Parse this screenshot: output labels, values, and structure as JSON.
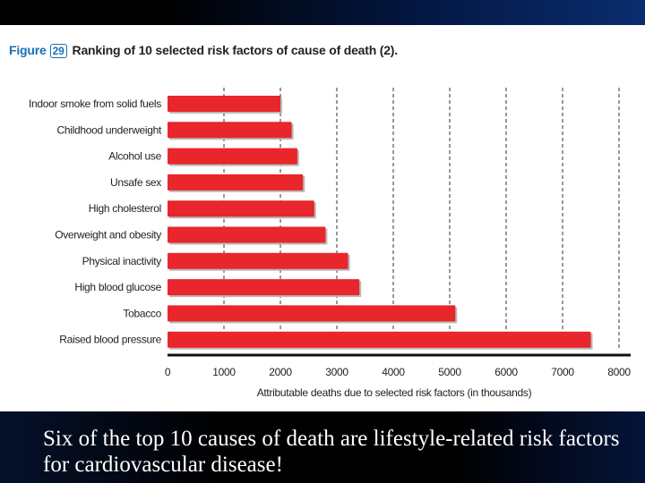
{
  "figure": {
    "word": "Figure",
    "number": "29",
    "title": "Ranking of 10 selected risk factors of cause of death (2)."
  },
  "caption": "Six of the top 10 causes of death are lifestyle-related risk factors for cardiovascular disease!",
  "chart_data": {
    "type": "bar",
    "orientation": "horizontal",
    "title": "Ranking of 10 selected risk factors of cause of death (2).",
    "xlabel": "Attributable deaths due to selected risk factors (in thousands)",
    "ylabel": "",
    "xlim": [
      0,
      8000
    ],
    "ticks": [
      0,
      1000,
      2000,
      3000,
      4000,
      5000,
      6000,
      7000,
      8000
    ],
    "grid": "dashed vertical",
    "bar_color": "#e8262b",
    "categories": [
      "Indoor smoke from solid fuels",
      "Childhood underweight",
      "Alcohol use",
      "Unsafe sex",
      "High cholesterol",
      "Overweight and obesity",
      "Physical inactivity",
      "High blood glucose",
      "Tobacco",
      "Raised blood pressure"
    ],
    "values": [
      2000,
      2200,
      2300,
      2400,
      2600,
      2800,
      3200,
      3400,
      5100,
      7500
    ]
  }
}
